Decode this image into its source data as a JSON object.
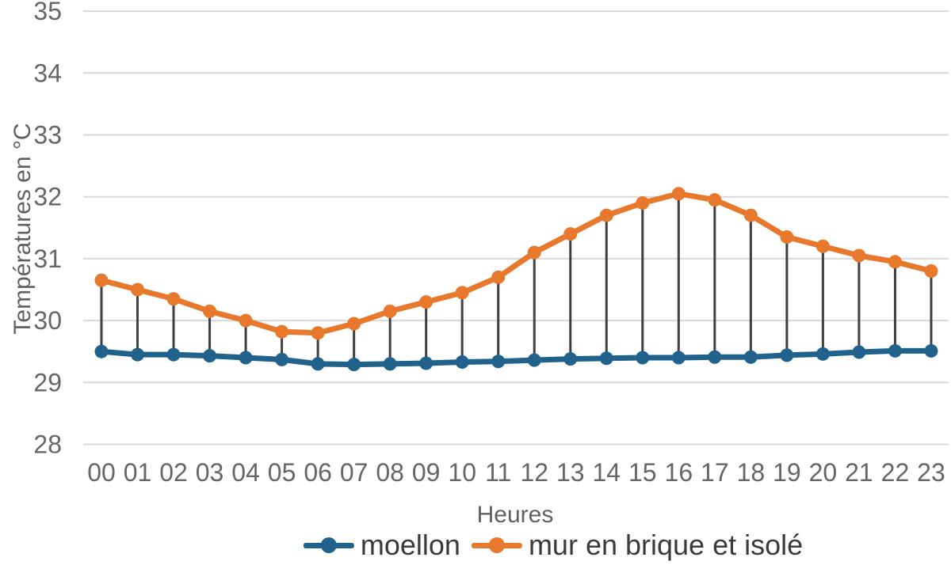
{
  "chart_data": {
    "type": "line",
    "title": "",
    "xlabel": "Heures",
    "ylabel": "Températures en °C",
    "categories": [
      "00",
      "01",
      "02",
      "03",
      "04",
      "05",
      "06",
      "07",
      "08",
      "09",
      "10",
      "11",
      "12",
      "13",
      "14",
      "15",
      "16",
      "17",
      "18",
      "19",
      "20",
      "21",
      "22",
      "23"
    ],
    "series": [
      {
        "name": "moellon",
        "color": "#20628C",
        "values": [
          29.5,
          29.45,
          29.45,
          29.43,
          29.4,
          29.37,
          29.3,
          29.29,
          29.3,
          29.31,
          29.33,
          29.34,
          29.36,
          29.38,
          29.39,
          29.4,
          29.4,
          29.41,
          29.41,
          29.44,
          29.46,
          29.49,
          29.51,
          29.51
        ]
      },
      {
        "name": "mur en brique et isolé",
        "color": "#E8782B",
        "values": [
          30.65,
          30.5,
          30.35,
          30.15,
          30.0,
          29.82,
          29.8,
          29.95,
          30.15,
          30.3,
          30.45,
          30.7,
          31.1,
          31.4,
          31.7,
          31.9,
          32.05,
          31.95,
          31.7,
          31.35,
          31.2,
          31.05,
          30.95,
          30.8
        ]
      }
    ],
    "ylim": [
      28,
      35
    ],
    "yticks": [
      35,
      34,
      33,
      32,
      31,
      30,
      29,
      28
    ],
    "grid": "horizontal",
    "legend_position": "bottom",
    "high_low_lines": {
      "show": true,
      "color": "#3F3F3F"
    }
  },
  "colors": {
    "grid": "#D8D8D8",
    "axis_text": "#666666",
    "legend_text": "#3A3A3A",
    "background": "#FFFFFF"
  }
}
